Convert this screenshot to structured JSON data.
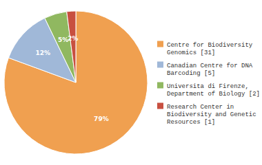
{
  "chart_data": {
    "type": "pie",
    "categories": [
      "Centre for Biodiversity\nGenomics [31]",
      "Canadian Centre for DNA\nBarcoding [5]",
      "Universita di Firenze,\nDepartment of Biology [2]",
      "Research Center in\nBiodiversity and Genetic\nResources [1]"
    ],
    "values": [
      79,
      12,
      5,
      2
    ],
    "value_labels": [
      "79%",
      "12%",
      "5%",
      "2%"
    ],
    "colors": [
      "#f0a050",
      "#a0b8d8",
      "#90b860",
      "#c85040"
    ],
    "data_labels": true,
    "legend": "right"
  }
}
